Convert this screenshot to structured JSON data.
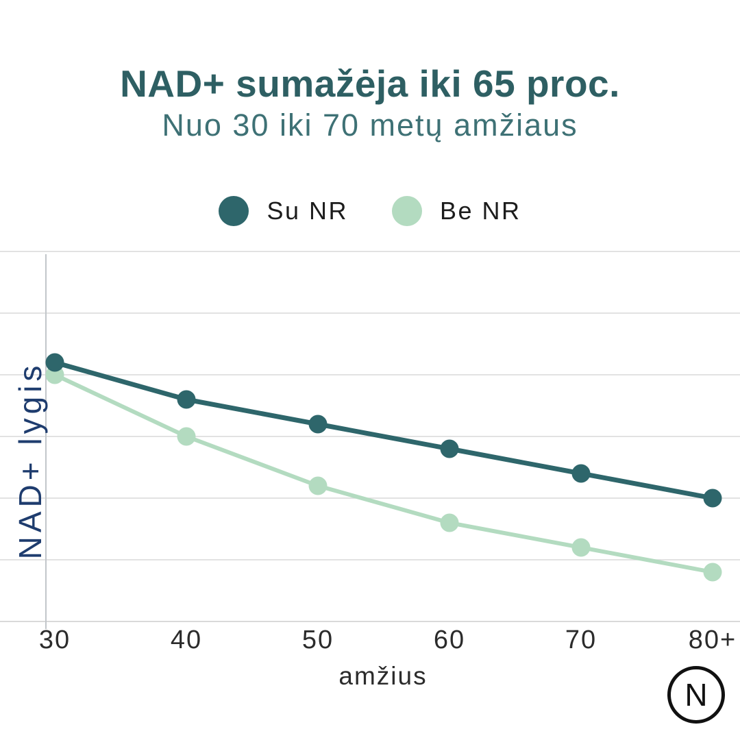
{
  "page": {
    "background": "#ffffff"
  },
  "header": {
    "title": "NAD+ sumažėja iki 65 proc.",
    "subtitle": "Nuo 30 iki 70 metų amžiaus",
    "title_color": "#2e5f63",
    "subtitle_color": "#3e7175"
  },
  "legend": {
    "items": [
      {
        "label": "Su NR",
        "color": "#2e666b"
      },
      {
        "label": "Be NR",
        "color": "#b3dbc0"
      }
    ]
  },
  "chart_data": {
    "type": "line",
    "title": "NAD+ sumažėja iki 65 proc.",
    "subtitle": "Nuo 30 iki 70 metų amžiaus",
    "categories": [
      "30",
      "40",
      "50",
      "60",
      "70",
      "80+"
    ],
    "series": [
      {
        "name": "Su NR",
        "color": "#2e666b",
        "values": [
          84,
          72,
          64,
          56,
          48,
          40
        ]
      },
      {
        "name": "Be NR",
        "color": "#b3dbc0",
        "values": [
          80,
          60,
          44,
          32,
          24,
          16
        ]
      }
    ],
    "xlabel": "amžius",
    "ylabel": "NAD+ lygis",
    "ylim": [
      0,
      120
    ],
    "y_gridline_step": 20,
    "y_tick_labels_shown": false,
    "grid": true,
    "legend_position": "top"
  },
  "axes": {
    "x_label": "amžius",
    "y_label": "NAD+ lygis",
    "x_ticks": [
      "30",
      "40",
      "50",
      "60",
      "70",
      "80+"
    ],
    "y_label_color": "#1e3c6e",
    "tick_color": "#2b2b2b"
  },
  "styles": {
    "grid_color": "#d9d9d9",
    "axis_line_color": "#c2c6ca",
    "marker_radius": 13.5,
    "line_widths": [
      7,
      6
    ]
  },
  "logo": {
    "letter": "N",
    "color": "#111111"
  }
}
